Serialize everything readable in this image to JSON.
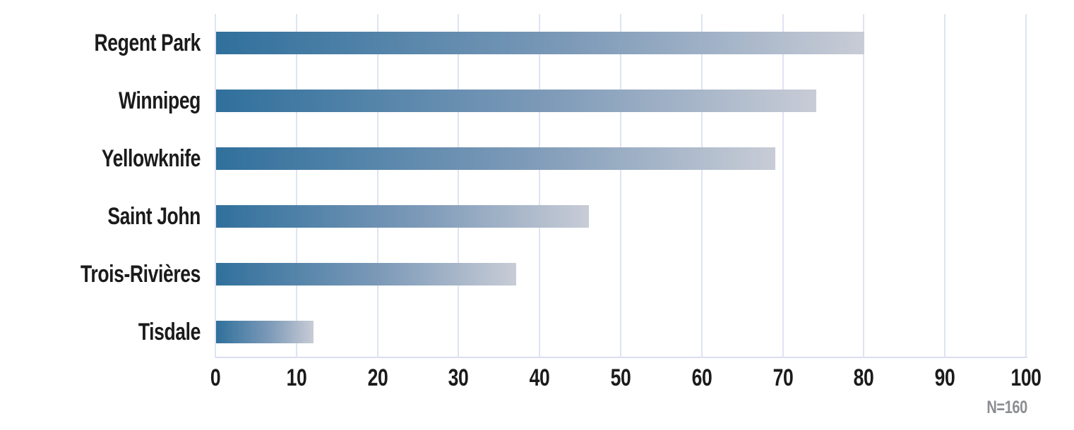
{
  "chart_data": {
    "type": "bar",
    "orientation": "horizontal",
    "title": "",
    "xlabel": "",
    "ylabel": "",
    "categories": [
      "Regent Park",
      "Winnipeg",
      "Yellowknife",
      "Saint John",
      "Trois-Rivières",
      "Tisdale"
    ],
    "values": [
      80,
      74,
      69,
      46,
      37,
      12
    ],
    "xlim": [
      0,
      100
    ],
    "x_ticks": [
      "0",
      "10",
      "20",
      "30",
      "40",
      "50",
      "60",
      "70",
      "80",
      "90",
      "100"
    ],
    "grid": "vertical",
    "legend": "none",
    "annotation": "N=160",
    "colors": {
      "bar_gradient_start": "#30709c",
      "bar_gradient_end": "#c8ccd6",
      "gridline": "#dfe4f3",
      "axis_text": "#1b1b1b",
      "annotation_text": "#8b8d91",
      "background": "#ffffff"
    }
  }
}
